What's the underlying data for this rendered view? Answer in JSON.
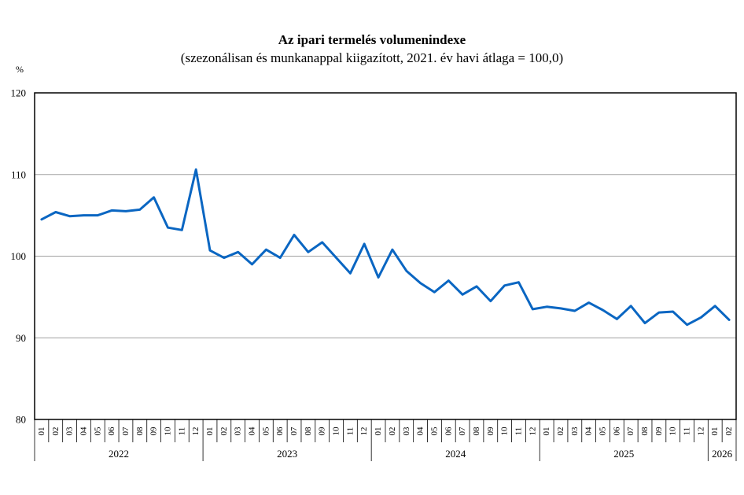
{
  "chart_data": {
    "type": "line",
    "title": "Az ipari termelés volumenindexe",
    "subtitle": "(szezonálisan és munkanappal kiigazított, 2021. év havi átlaga = 100,0)",
    "ylabel": "%",
    "xlabel": "",
    "ylim": [
      80,
      120
    ],
    "yticks": [
      80,
      90,
      100,
      110,
      120
    ],
    "grid": true,
    "line_color": "#0a66c2",
    "grid_color": "#a0a0a0",
    "months": [
      "01",
      "02",
      "03",
      "04",
      "05",
      "06",
      "07",
      "08",
      "09",
      "10",
      "11",
      "12",
      "01",
      "02",
      "03",
      "04",
      "05",
      "06",
      "07",
      "08",
      "09",
      "10",
      "11",
      "12",
      "01",
      "02",
      "03",
      "04",
      "05",
      "06",
      "07",
      "08",
      "09",
      "10",
      "11",
      "12",
      "01",
      "02",
      "03",
      "04",
      "05",
      "06",
      "07",
      "08",
      "09",
      "10",
      "11",
      "12",
      "01",
      "02"
    ],
    "years": [
      {
        "label": "2022",
        "count": 12
      },
      {
        "label": "2023",
        "count": 12
      },
      {
        "label": "2024",
        "count": 12
      },
      {
        "label": "2025",
        "count": 12
      },
      {
        "label": "2026",
        "count": 2
      }
    ],
    "series": [
      {
        "name": "Ipari termelés volumenindexe",
        "values": [
          104.5,
          105.4,
          104.9,
          105.0,
          105.0,
          105.6,
          105.5,
          105.7,
          107.2,
          103.5,
          103.2,
          110.6,
          100.7,
          99.8,
          100.5,
          99.0,
          100.8,
          99.8,
          102.6,
          100.5,
          101.7,
          99.8,
          97.9,
          101.5,
          97.4,
          100.8,
          98.2,
          96.7,
          95.6,
          97.0,
          95.3,
          96.3,
          94.5,
          96.4,
          96.8,
          93.5,
          93.8,
          93.6,
          93.3,
          94.3,
          93.4,
          92.3,
          93.9,
          91.8,
          93.1,
          93.2,
          91.6,
          92.5,
          93.9,
          92.2
        ]
      }
    ]
  }
}
